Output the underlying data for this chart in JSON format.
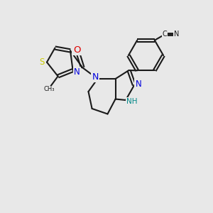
{
  "background_color": "#e8e8e8",
  "bond_color": "#1a1a1a",
  "blue": "#0000dd",
  "teal": "#008888",
  "red": "#dd0000",
  "yellow": "#cccc00",
  "lw": 1.5,
  "fs": 8.0,
  "figsize": [
    3.0,
    3.0
  ],
  "dpi": 100,
  "xlim": [
    0,
    10
  ],
  "ylim": [
    0,
    10
  ]
}
